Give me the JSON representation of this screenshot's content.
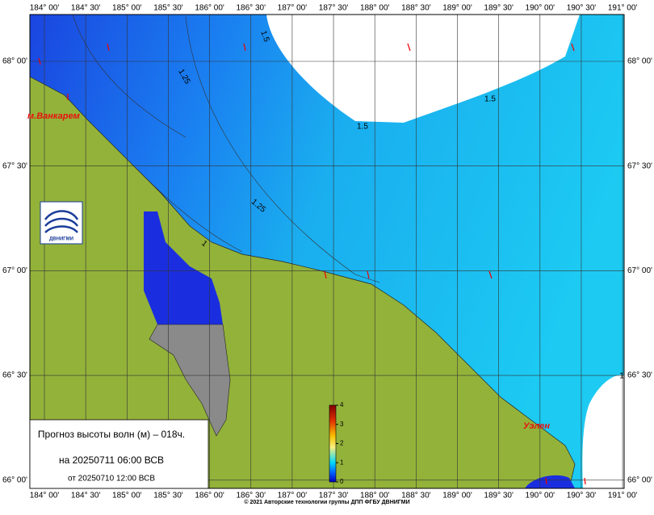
{
  "lon_labels": [
    "184° 00'",
    "184° 30'",
    "185° 00'",
    "185° 30'",
    "186° 00'",
    "186° 30'",
    "187° 00'",
    "187° 30'",
    "188° 00'",
    "188° 30'",
    "189° 00'",
    "189° 30'",
    "190° 00'",
    "190° 30'",
    "191° 00'"
  ],
  "lat_labels": [
    "68° 00'",
    "67° 30'",
    "67° 00'",
    "66° 30'",
    "66° 00'"
  ],
  "contour_labels": [
    "1.5",
    "1.25",
    "1.5",
    "1.5",
    "1.25",
    "1",
    "1"
  ],
  "places": [
    "м.Ванкарем",
    "Уэлен"
  ],
  "logo": "ДВНИГМИ",
  "legend": {
    "title": "Прогноз высоты волн (м) – 018ч.",
    "valid": "на 20250711 06:00 ВСВ",
    "issued": "от 20250710 12:00 ВСВ"
  },
  "colorbar_ticks": [
    0,
    1,
    2,
    3,
    4
  ],
  "footer": "© 2021 Авторские технологии группы ДПП ФГБУ ДВНИГМИ"
}
